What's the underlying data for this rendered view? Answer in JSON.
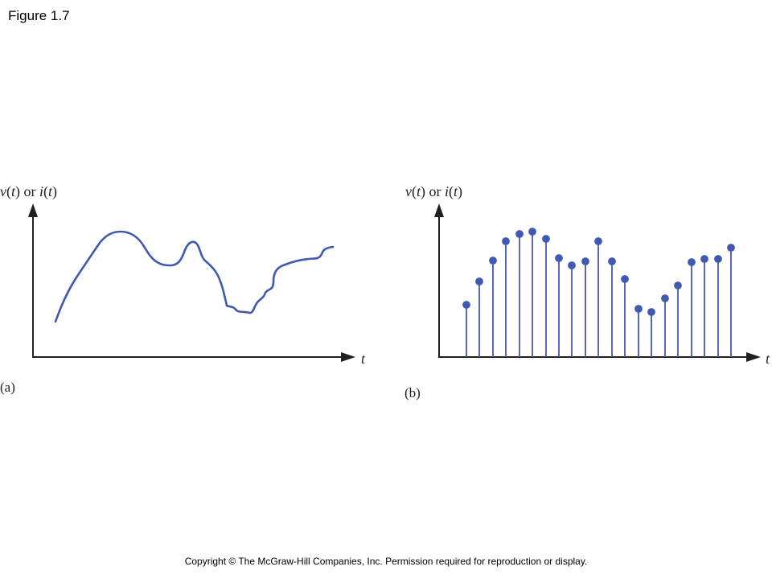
{
  "slide": {
    "title": "Figure 1.7",
    "copyright": "Copyright © The McGraw-Hill  Companies, Inc. Permission required for reproduction or display."
  },
  "colors": {
    "curve": "#4159b0",
    "axis": "#231f20"
  },
  "panels": [
    {
      "panel_label": "(a)",
      "y_label": {
        "v": "v",
        "t1": "t",
        "or": " or ",
        "i": "i",
        "t2": "t"
      },
      "x_label": "t",
      "kind": "continuous"
    },
    {
      "panel_label": "(b)",
      "y_label": {
        "v": "v",
        "t1": "t",
        "or": " or ",
        "i": "i",
        "t2": "t"
      },
      "x_label": "t",
      "kind": "discrete"
    }
  ]
}
